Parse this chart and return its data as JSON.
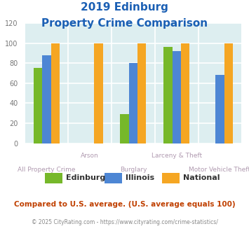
{
  "title_line1": "2019 Edinburg",
  "title_line2": "Property Crime Comparison",
  "categories": [
    "All Property Crime",
    "Arson",
    "Burglary",
    "Larceny & Theft",
    "Motor Vehicle Theft"
  ],
  "series": {
    "Edinburg": [
      75,
      null,
      29,
      96,
      null
    ],
    "Illinois": [
      88,
      null,
      80,
      92,
      68
    ],
    "National": [
      100,
      100,
      100,
      100,
      100
    ]
  },
  "colors": {
    "Edinburg": "#76b82a",
    "Illinois": "#4d86d4",
    "National": "#f5a623"
  },
  "ylim": [
    0,
    120
  ],
  "yticks": [
    0,
    20,
    40,
    60,
    80,
    100,
    120
  ],
  "plot_bg": "#ddeef0",
  "grid_color": "#ffffff",
  "title_color": "#1a5fb4",
  "xlabel_top": [
    "",
    "Arson",
    "",
    "Larceny & Theft",
    ""
  ],
  "xlabel_bot": [
    "All Property Crime",
    "",
    "Burglary",
    "",
    "Motor Vehicle Theft"
  ],
  "xlabel_color": "#b09ab0",
  "legend_labels": [
    "Edinburg",
    "Illinois",
    "National"
  ],
  "footer_text": "Compared to U.S. average. (U.S. average equals 100)",
  "footer_color": "#c04000",
  "credit_text": "© 2025 CityRating.com - https://www.cityrating.com/crime-statistics/",
  "credit_color": "#888888",
  "bar_width": 0.2
}
